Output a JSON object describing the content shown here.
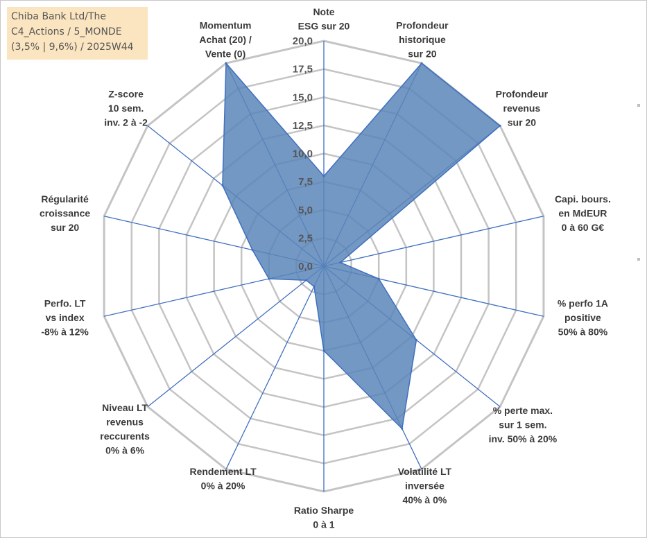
{
  "title_box": {
    "lines": [
      "Chiba Bank Ltd/The",
      "C4_Actions / 5_MONDE",
      "(3,5% | 9,6%) / 2025W44"
    ]
  },
  "chart_data": {
    "type": "radar",
    "range": [
      0,
      20
    ],
    "tick_step": 2.5,
    "tick_labels": [
      "0,0",
      "2,5",
      "5,0",
      "7,5",
      "10,0",
      "12,5",
      "15,0",
      "17,5",
      "20,0"
    ],
    "axes": [
      {
        "label": [
          "Note",
          "ESG sur 20"
        ],
        "value": 8
      },
      {
        "label": [
          "Profondeur",
          "historique",
          "sur 20"
        ],
        "value": 20
      },
      {
        "label": [
          "Profondeur",
          "revenus",
          "sur 20"
        ],
        "value": 20
      },
      {
        "label": [
          "Capi. bours.",
          "en MdEUR",
          "0 à 60 G€"
        ],
        "value": 1.5
      },
      {
        "label": [
          "% perfo 1A",
          "positive",
          "50% à 80%"
        ],
        "value": 5
      },
      {
        "label": [
          "% perte max.",
          "sur 1 sem.",
          "inv. 50% à 20%"
        ],
        "value": 10.5
      },
      {
        "label": [
          "Volatilité LT",
          "inversée",
          "40% à 0%"
        ],
        "value": 16
      },
      {
        "label": [
          "Ratio Sharpe",
          "0 à 1"
        ],
        "value": 7.5
      },
      {
        "label": [
          "Rendement LT",
          "0% à 20%"
        ],
        "value": 2
      },
      {
        "label": [
          "Niveau LT",
          "revenus",
          "reccurents",
          "0% à 6%"
        ],
        "value": 2
      },
      {
        "label": [
          "Perfo. LT",
          "vs index",
          "-8% à 12%"
        ],
        "value": 5
      },
      {
        "label": [
          "Régularité",
          "croissance",
          "sur 20"
        ],
        "value": 6.5
      },
      {
        "label": [
          "Z-score",
          "10 sem.",
          "inv. 2 à -2"
        ],
        "value": 11.5
      },
      {
        "label": [
          "Momentum",
          "Achat (20) /",
          "Vente (0)"
        ],
        "value": 20
      }
    ],
    "series": [
      {
        "name": "Chiba Bank Ltd/The",
        "color": "#5b86b8"
      }
    ],
    "colors": {
      "grid": "#c4c4c4",
      "spoke": "#3f6fbf",
      "fill": "#5b86b8",
      "stroke": "#3f6fbf"
    }
  }
}
